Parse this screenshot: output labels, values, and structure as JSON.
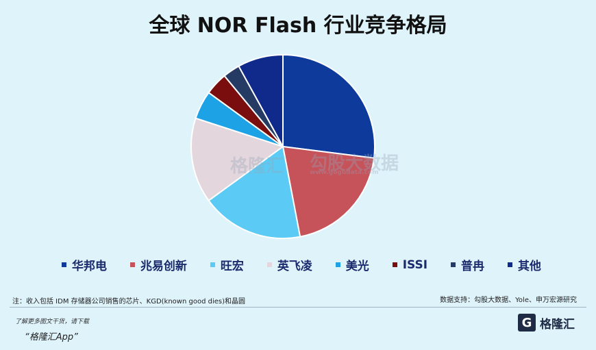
{
  "title": "全球 NOR Flash 行业竞争格局",
  "chart_data": {
    "type": "pie",
    "title": "全球 NOR Flash 行业竞争格局",
    "slices": [
      {
        "name": "华邦电",
        "value": 27,
        "color": "#0d3a9b"
      },
      {
        "name": "兆易创新",
        "value": 20,
        "color": "#c6525a"
      },
      {
        "name": "旺宏",
        "value": 18,
        "color": "#5bcbf5"
      },
      {
        "name": "英飞凌",
        "value": 15,
        "color": "#e3d6dc"
      },
      {
        "name": "美光",
        "value": 5,
        "color": "#1ea2e6"
      },
      {
        "name": "ISSI",
        "value": 4,
        "color": "#7a0e0e"
      },
      {
        "name": "普冉",
        "value": 3,
        "color": "#253b63"
      },
      {
        "name": "其他",
        "value": 8,
        "color": "#0f2a8a"
      }
    ],
    "legend_position": "bottom"
  },
  "footnote": "注：收入包括 IDM 存储器公司销售的芯片、KGD(known good dies)和晶圆",
  "source": "数据支持：勾股大数据、Yole、申万宏源研究",
  "promo": "了解更多图文干货，请下载",
  "promo_app": "“格隆汇App”",
  "logo_mark": "G",
  "logo_text": "格隆汇",
  "watermark": {
    "left": "格隆汇",
    "right": "勾股大数据",
    "url": "www.gogudata.com"
  }
}
